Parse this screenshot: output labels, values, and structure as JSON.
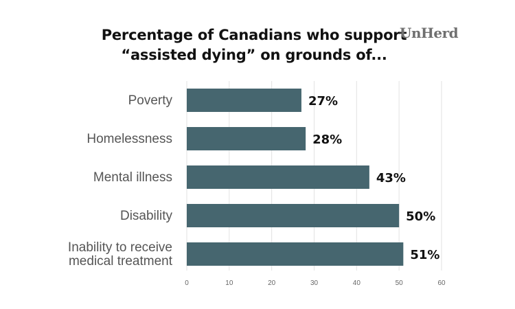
{
  "header": {
    "title_line1": "Percentage of Canadians who support",
    "title_line2": "“assisted dying” on grounds of...",
    "logo": "UnHerd"
  },
  "chart_data": {
    "type": "bar",
    "orientation": "horizontal",
    "title": "Percentage of Canadians who support “assisted dying” on grounds of...",
    "categories": [
      [
        "Poverty"
      ],
      [
        "Homelessness"
      ],
      [
        "Mental illness"
      ],
      [
        "Disability"
      ],
      [
        "Inability to receive",
        "medical treatment"
      ]
    ],
    "values": [
      27,
      28,
      43,
      50,
      51
    ],
    "value_labels": [
      "27%",
      "28%",
      "43%",
      "50%",
      "51%"
    ],
    "xlim": [
      0,
      60
    ],
    "xticks": [
      0,
      10,
      20,
      30,
      40,
      50,
      60
    ],
    "grid": true,
    "bar_color": "#46666f",
    "grid_color": "#e2e2e2"
  }
}
